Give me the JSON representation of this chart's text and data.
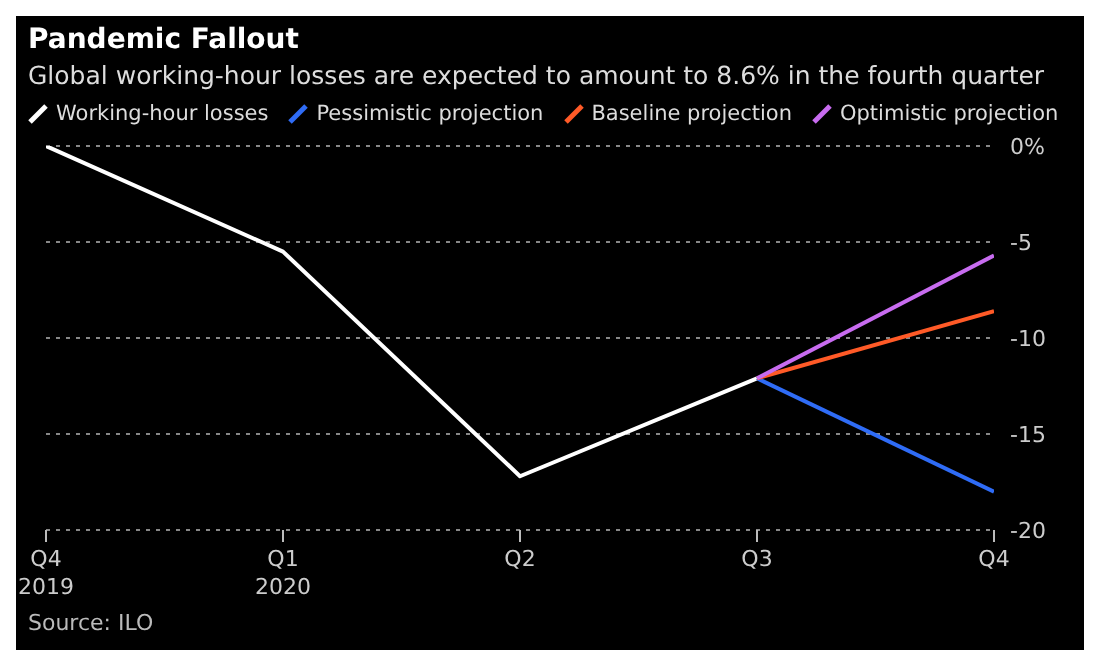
{
  "chart_data": {
    "type": "line",
    "title": "Pandemic Fallout",
    "subtitle": "Global working-hour losses are expected to amount to 8.6% in the fourth quarter",
    "annotations": [
      "Source: ILO"
    ],
    "categories": [
      "Q4\n2019",
      "Q1\n2020",
      "Q2",
      "Q3",
      "Q4"
    ],
    "series": [
      {
        "name": "Working-hour losses",
        "color": "#ffffff",
        "values": [
          0,
          -5.5,
          -17.2,
          -12.1,
          null
        ]
      },
      {
        "name": "Pessimistic projection",
        "color": "#2f6cf6",
        "values": [
          null,
          null,
          null,
          -12.1,
          -18.0
        ]
      },
      {
        "name": "Baseline projection",
        "color": "#ff5a27",
        "values": [
          null,
          null,
          null,
          -12.1,
          -8.6
        ]
      },
      {
        "name": "Optimistic projection",
        "color": "#c86cf0",
        "values": [
          null,
          null,
          null,
          -12.1,
          -5.7
        ]
      }
    ],
    "ylim": [
      -20,
      0
    ],
    "yticks": [
      {
        "value": 0,
        "label": "0%"
      },
      -5,
      -10,
      -15,
      -20
    ],
    "grid": "y",
    "legend": "top left",
    "marker": "none",
    "line_style": "solid"
  }
}
